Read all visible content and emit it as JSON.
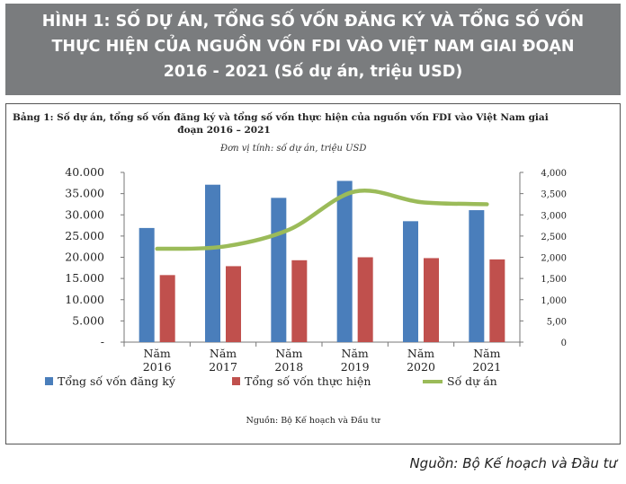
{
  "header": {
    "line1": "HÌNH 1: SỐ DỰ ÁN, TỔNG SỐ VỐN ĐĂNG KÝ VÀ TỔNG SỐ VỐN",
    "line2": "THỰC HIỆN CỦA NGUỒN VỐN FDI VÀO VIỆT NAM GIAI ĐOẠN",
    "line3": "2016 - 2021 (Số dự án, triệu USD)"
  },
  "table_caption": {
    "line1": "Bảng 1: Số dự án, tổng số vốn đăng ký và tổng số vốn thực hiện của nguồn vốn FDI vào Việt Nam giai",
    "line2": "đoạn 2016 – 2021"
  },
  "unit_note": "Đơn vị tính: số dự án, triệu USD",
  "inner_source": "Nguồn: Bộ Kế hoạch và Đầu tư",
  "outer_source": "Nguồn: Bộ Kế hoạch và Đầu tư",
  "colors": {
    "registered": "#4a7ebb",
    "implemented": "#c0504d",
    "projects": "#9bbb59"
  },
  "chart_data": {
    "type": "bar",
    "categories": [
      "Năm 2016",
      "Năm 2017",
      "Năm 2018",
      "Năm 2019",
      "Năm 2020",
      "Năm 2021"
    ],
    "category_lines": [
      [
        "Năm",
        "2016"
      ],
      [
        "Năm",
        "2017"
      ],
      [
        "Năm",
        "2018"
      ],
      [
        "Năm",
        "2019"
      ],
      [
        "Năm",
        "2020"
      ],
      [
        "Năm",
        "2021"
      ]
    ],
    "series": [
      {
        "name": "Tổng số vốn đăng ký",
        "type": "bar",
        "axis": "left",
        "values": [
          26900,
          37100,
          34000,
          38000,
          28500,
          31100
        ]
      },
      {
        "name": "Tổng số vốn thực hiện",
        "type": "bar",
        "axis": "left",
        "values": [
          15800,
          17900,
          19300,
          20000,
          19800,
          19500
        ]
      },
      {
        "name": "Số dự án",
        "type": "line",
        "axis": "right",
        "values": [
          2200,
          2250,
          2650,
          3550,
          3300,
          3250
        ]
      }
    ],
    "y_left": {
      "min": 0,
      "max": 40000,
      "ticks": [
        "-",
        "5.000",
        "10.000",
        "15.000",
        "20.000",
        "25.000",
        "30.000",
        "35.000",
        "40.000"
      ]
    },
    "y_right": {
      "min": 0,
      "max": 4000,
      "ticks": [
        "0",
        "5,00",
        "1,000",
        "1,500",
        "2,000",
        "2,500",
        "3,000",
        "3,500",
        "4,000"
      ]
    },
    "legend": [
      "Tổng số vốn đăng ký",
      "Tổng số vốn thực hiện",
      "Số dự án"
    ]
  }
}
